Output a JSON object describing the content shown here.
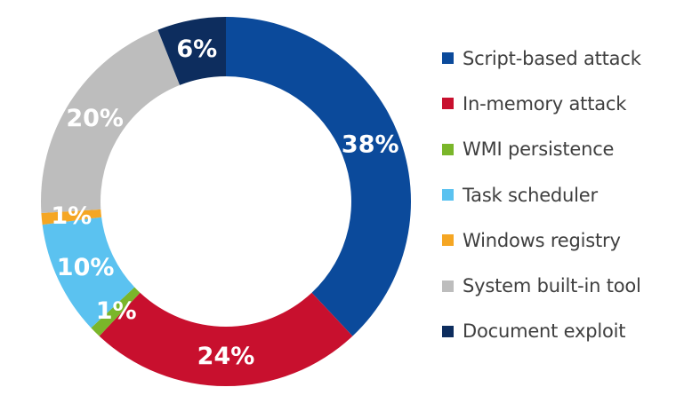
{
  "chart_data": {
    "type": "pie",
    "variant": "donut",
    "title": "",
    "legend_position": "right",
    "slices": [
      {
        "name": "Script-based attack",
        "value": 38,
        "label": "38%",
        "color": "#0b4a9b"
      },
      {
        "name": "In-memory attack",
        "value": 24,
        "label": "24%",
        "color": "#c8102e"
      },
      {
        "name": "WMI persistence",
        "value": 1,
        "label": "1%",
        "color": "#7ab62a"
      },
      {
        "name": "Task scheduler",
        "value": 10,
        "label": "10%",
        "color": "#5bc2f0"
      },
      {
        "name": "Windows registry",
        "value": 1,
        "label": "1%",
        "color": "#f5a623"
      },
      {
        "name": "System built-in tool",
        "value": 20,
        "label": "20%",
        "color": "#bdbdbd"
      },
      {
        "name": "Document exploit",
        "value": 6,
        "label": "6%",
        "color": "#0d2d5e"
      }
    ]
  }
}
